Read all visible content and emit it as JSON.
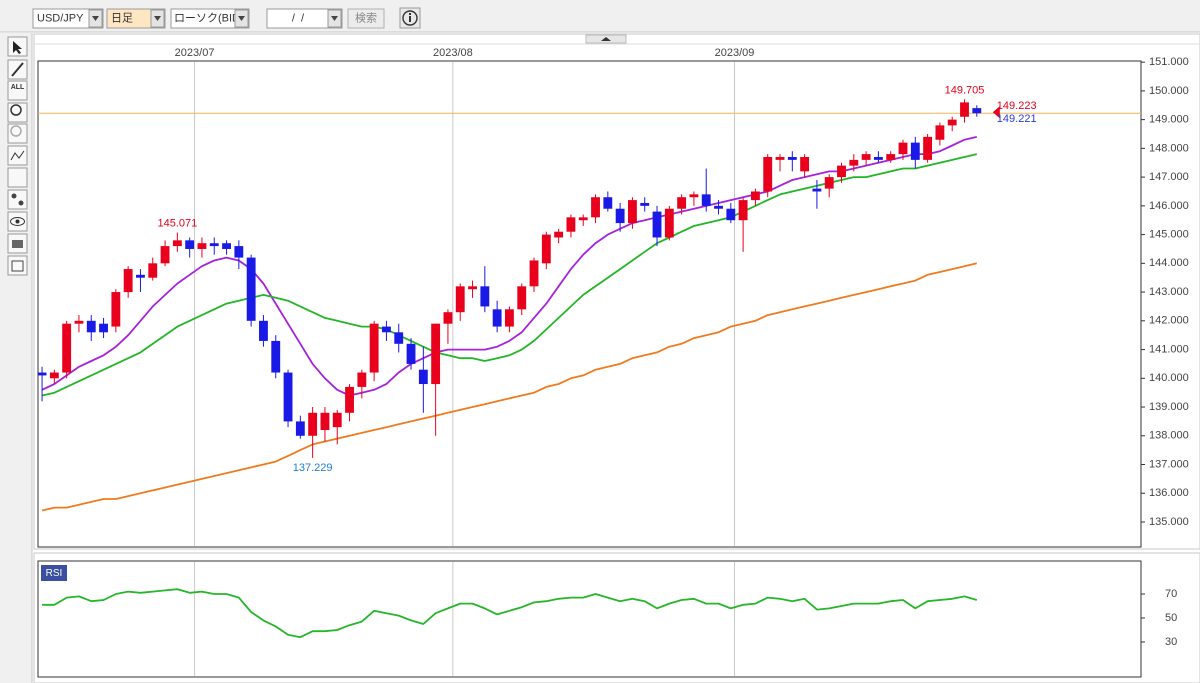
{
  "toolbar": {
    "symbol": "USD/JPY",
    "period": "日足",
    "chart_kind": "ローソク(BID)",
    "date": "/  /",
    "search": "検索"
  },
  "tools": {
    "all": "ALL"
  },
  "chart_data": [
    {
      "type": "candlestick",
      "x": [
        0,
        1,
        2,
        3,
        4,
        5,
        6,
        7,
        8,
        9,
        10,
        11,
        12,
        13,
        14,
        15,
        16,
        17,
        18,
        19,
        20,
        21,
        22,
        23,
        24,
        25,
        26,
        27,
        28,
        29,
        30,
        31,
        32,
        33,
        34,
        35,
        36,
        37,
        38,
        39,
        40,
        41,
        42,
        43,
        44,
        45,
        46,
        47,
        48,
        49,
        50,
        51,
        52,
        53,
        54,
        55,
        56,
        57,
        58,
        59,
        60,
        61,
        62,
        63,
        64,
        65,
        66,
        67,
        68,
        69,
        70,
        71,
        72,
        73,
        74,
        75,
        76
      ],
      "open": [
        140.2,
        140.0,
        140.2,
        141.9,
        142.0,
        141.9,
        141.8,
        143.0,
        143.6,
        143.5,
        144.0,
        144.6,
        144.8,
        144.5,
        144.7,
        144.7,
        144.6,
        144.2,
        142.0,
        141.3,
        140.2,
        138.5,
        138.0,
        138.2,
        138.3,
        138.8,
        139.7,
        140.2,
        141.8,
        141.6,
        141.2,
        140.3,
        139.8,
        141.9,
        142.3,
        143.1,
        143.2,
        142.4,
        141.8,
        142.4,
        143.2,
        144.0,
        144.9,
        145.1,
        145.5,
        145.6,
        146.3,
        145.9,
        145.4,
        146.1,
        145.8,
        144.9,
        145.9,
        146.3,
        146.4,
        146.0,
        145.9,
        145.5,
        146.2,
        146.5,
        147.6,
        147.7,
        147.2,
        146.6,
        146.6,
        147.0,
        147.4,
        147.6,
        147.7,
        147.6,
        147.8,
        148.2,
        147.6,
        148.3,
        148.8,
        149.1,
        149.4
      ],
      "high": [
        140.4,
        140.3,
        142.0,
        142.2,
        142.2,
        142.1,
        143.1,
        143.9,
        143.8,
        144.2,
        144.8,
        145.071,
        144.9,
        144.9,
        144.9,
        144.8,
        144.8,
        144.3,
        142.2,
        141.5,
        140.3,
        138.7,
        139.0,
        139.0,
        138.9,
        139.8,
        140.3,
        142.0,
        142.0,
        141.9,
        141.4,
        141.1,
        141.9,
        142.4,
        143.3,
        143.4,
        143.9,
        142.7,
        142.5,
        143.3,
        144.2,
        145.1,
        145.2,
        145.7,
        145.7,
        146.4,
        146.5,
        146.1,
        146.3,
        146.3,
        146.0,
        146.0,
        146.4,
        146.5,
        147.3,
        146.2,
        146.1,
        146.3,
        146.6,
        147.8,
        147.8,
        147.9,
        147.8,
        146.9,
        147.1,
        147.5,
        147.8,
        147.9,
        147.9,
        147.9,
        148.3,
        148.4,
        148.5,
        148.9,
        149.1,
        149.705,
        149.5
      ],
      "low": [
        139.2,
        139.8,
        140.0,
        141.6,
        141.3,
        141.4,
        141.6,
        142.8,
        143.0,
        143.4,
        143.9,
        144.4,
        144.2,
        144.2,
        144.3,
        144.3,
        143.8,
        141.8,
        141.1,
        140.0,
        138.3,
        137.9,
        137.229,
        137.8,
        137.7,
        138.5,
        139.3,
        139.9,
        141.3,
        140.9,
        140.3,
        138.8,
        138.0,
        141.2,
        142.0,
        142.8,
        142.3,
        141.6,
        141.6,
        142.2,
        143.0,
        143.8,
        144.7,
        144.9,
        145.3,
        145.4,
        145.8,
        145.1,
        145.2,
        145.8,
        144.6,
        144.8,
        145.7,
        146.0,
        145.8,
        145.7,
        145.4,
        144.4,
        146.0,
        146.3,
        147.2,
        147.2,
        147.0,
        145.9,
        146.3,
        146.8,
        147.2,
        147.4,
        147.5,
        147.5,
        147.6,
        147.3,
        147.5,
        148.1,
        148.6,
        148.9,
        149.1
      ],
      "close": [
        140.1,
        140.2,
        141.9,
        142.0,
        141.6,
        141.6,
        143.0,
        143.8,
        143.5,
        144.0,
        144.6,
        144.8,
        144.5,
        144.7,
        144.6,
        144.5,
        144.2,
        142.0,
        141.3,
        140.2,
        138.5,
        138.0,
        138.8,
        138.8,
        138.8,
        139.7,
        140.2,
        141.9,
        141.6,
        141.2,
        140.5,
        139.8,
        141.9,
        142.3,
        143.2,
        143.2,
        142.5,
        141.8,
        142.4,
        143.2,
        144.1,
        145.0,
        145.1,
        145.6,
        145.6,
        146.3,
        145.9,
        145.4,
        146.2,
        146.0,
        144.9,
        145.9,
        146.3,
        146.4,
        146.0,
        145.9,
        145.5,
        146.2,
        146.5,
        147.7,
        147.7,
        147.6,
        147.7,
        146.5,
        147.0,
        147.4,
        147.6,
        147.8,
        147.6,
        147.8,
        148.2,
        147.6,
        148.4,
        148.8,
        149.0,
        149.6,
        149.223
      ],
      "up_color": "#e8001c",
      "down_color": "#1a1ae6",
      "lines": [
        {
          "color": "#a522dc",
          "values": [
            139.6,
            139.8,
            140.1,
            140.4,
            140.6,
            140.8,
            141.1,
            141.5,
            142.0,
            142.5,
            142.9,
            143.3,
            143.6,
            143.9,
            144.1,
            144.2,
            144.1,
            143.8,
            143.3,
            142.6,
            141.9,
            141.2,
            140.5,
            140.0,
            139.6,
            139.4,
            139.5,
            139.6,
            139.8,
            140.2,
            140.5,
            140.7,
            140.9,
            141.0,
            141.0,
            141.0,
            141.0,
            141.1,
            141.3,
            141.6,
            142.1,
            142.6,
            143.2,
            143.8,
            144.3,
            144.7,
            145.0,
            145.2,
            145.4,
            145.5,
            145.6,
            145.7,
            145.8,
            145.9,
            146.0,
            146.1,
            146.2,
            146.3,
            146.4,
            146.5,
            146.7,
            146.9,
            147.0,
            147.1,
            147.2,
            147.2,
            147.3,
            147.4,
            147.5,
            147.6,
            147.7,
            147.8,
            147.8,
            147.9,
            148.1,
            148.3,
            148.4
          ]
        },
        {
          "color": "#22b526",
          "values": [
            139.4,
            139.5,
            139.7,
            139.9,
            140.1,
            140.3,
            140.5,
            140.7,
            140.9,
            141.2,
            141.5,
            141.8,
            142.0,
            142.2,
            142.4,
            142.6,
            142.7,
            142.8,
            142.9,
            142.8,
            142.7,
            142.5,
            142.3,
            142.1,
            142.0,
            141.9,
            141.8,
            141.8,
            141.7,
            141.5,
            141.3,
            141.1,
            140.9,
            140.8,
            140.7,
            140.7,
            140.6,
            140.7,
            140.8,
            141.0,
            141.3,
            141.7,
            142.1,
            142.5,
            142.9,
            143.2,
            143.5,
            143.8,
            144.1,
            144.4,
            144.7,
            144.9,
            145.1,
            145.3,
            145.4,
            145.5,
            145.6,
            145.8,
            146.0,
            146.2,
            146.4,
            146.5,
            146.6,
            146.7,
            146.8,
            146.9,
            147.0,
            147.0,
            147.1,
            147.2,
            147.3,
            147.3,
            147.4,
            147.5,
            147.6,
            147.7,
            147.8
          ]
        },
        {
          "color": "#f07a1e",
          "values": [
            135.4,
            135.5,
            135.5,
            135.6,
            135.7,
            135.8,
            135.8,
            135.9,
            136.0,
            136.1,
            136.2,
            136.3,
            136.4,
            136.5,
            136.6,
            136.7,
            136.8,
            136.9,
            137.0,
            137.1,
            137.3,
            137.5,
            137.7,
            137.8,
            137.9,
            138.0,
            138.1,
            138.2,
            138.3,
            138.4,
            138.5,
            138.6,
            138.7,
            138.8,
            138.9,
            139.0,
            139.1,
            139.2,
            139.3,
            139.4,
            139.5,
            139.7,
            139.8,
            140.0,
            140.1,
            140.3,
            140.4,
            140.5,
            140.7,
            140.8,
            140.9,
            141.1,
            141.2,
            141.4,
            141.5,
            141.6,
            141.8,
            141.9,
            142.0,
            142.2,
            142.3,
            142.4,
            142.5,
            142.6,
            142.7,
            142.8,
            142.9,
            143.0,
            143.1,
            143.2,
            143.3,
            143.4,
            143.6,
            143.7,
            143.8,
            143.9,
            144.0
          ]
        }
      ],
      "annotations": [
        {
          "x": 11,
          "value": 145.071,
          "color": "#e8001c",
          "position": "above"
        },
        {
          "x": 22,
          "value": 137.229,
          "color": "#1f7fd6",
          "position": "below"
        },
        {
          "x": 75,
          "value": 149.705,
          "color": "#e8001c",
          "position": "above"
        }
      ],
      "price_line_color": "#f2b45a",
      "ask": 149.221,
      "ask_color": "#2a3cd8",
      "xlim": [
        -0.33,
        89.35
      ],
      "xticks": [
        {
          "value": 12.4,
          "label": "2023/07"
        },
        {
          "value": 33.4,
          "label": "2023/08"
        },
        {
          "value": 56.3,
          "label": "2023/09"
        }
      ],
      "ylim": [
        134.13,
        151.04
      ],
      "yticks": [
        {
          "value": 151,
          "label": "151.000"
        },
        {
          "value": 150,
          "label": "150.000"
        },
        {
          "value": 149,
          "label": "149.000"
        },
        {
          "value": 148,
          "label": "148.000"
        },
        {
          "value": 147,
          "label": "147.000"
        },
        {
          "value": 146,
          "label": "146.000"
        },
        {
          "value": 145,
          "label": "145.000"
        },
        {
          "value": 144,
          "label": "144.000"
        },
        {
          "value": 143,
          "label": "143.000"
        },
        {
          "value": 142,
          "label": "142.000"
        },
        {
          "value": 141,
          "label": "141.000"
        },
        {
          "value": 140,
          "label": "140.000"
        },
        {
          "value": 139,
          "label": "139.000"
        },
        {
          "value": 138,
          "label": "138.000"
        },
        {
          "value": 137,
          "label": "137.000"
        },
        {
          "value": 136,
          "label": "136.000"
        },
        {
          "value": 135,
          "label": "135.000"
        }
      ]
    },
    {
      "type": "line",
      "title": "RSI",
      "x": [
        0,
        1,
        2,
        3,
        4,
        5,
        6,
        7,
        8,
        9,
        10,
        11,
        12,
        13,
        14,
        15,
        16,
        17,
        18,
        19,
        20,
        21,
        22,
        23,
        24,
        25,
        26,
        27,
        28,
        29,
        30,
        31,
        32,
        33,
        34,
        35,
        36,
        37,
        38,
        39,
        40,
        41,
        42,
        43,
        44,
        45,
        46,
        47,
        48,
        49,
        50,
        51,
        52,
        53,
        54,
        55,
        56,
        57,
        58,
        59,
        60,
        61,
        62,
        63,
        64,
        65,
        66,
        67,
        68,
        69,
        70,
        71,
        72,
        73,
        74,
        75,
        76
      ],
      "color": "#27b52a",
      "values": [
        61,
        61,
        67,
        68,
        64,
        65,
        70,
        72,
        71,
        72,
        73,
        74,
        71,
        72,
        70,
        70,
        67,
        55,
        48,
        43,
        36,
        34,
        39,
        39,
        40,
        44,
        47,
        56,
        54,
        52,
        48,
        45,
        54,
        58,
        62,
        62,
        58,
        53,
        56,
        59,
        63,
        64,
        66,
        67,
        67,
        70,
        67,
        64,
        66,
        64,
        58,
        62,
        65,
        66,
        62,
        62,
        58,
        61,
        62,
        67,
        66,
        64,
        66,
        57,
        58,
        60,
        62,
        62,
        62,
        64,
        65,
        58,
        64,
        65,
        66,
        68,
        65
      ],
      "xlim": [
        -0.33,
        89.35
      ],
      "ylim": [
        0.8,
        97.5
      ],
      "yticks": [
        70,
        50,
        30
      ]
    }
  ]
}
